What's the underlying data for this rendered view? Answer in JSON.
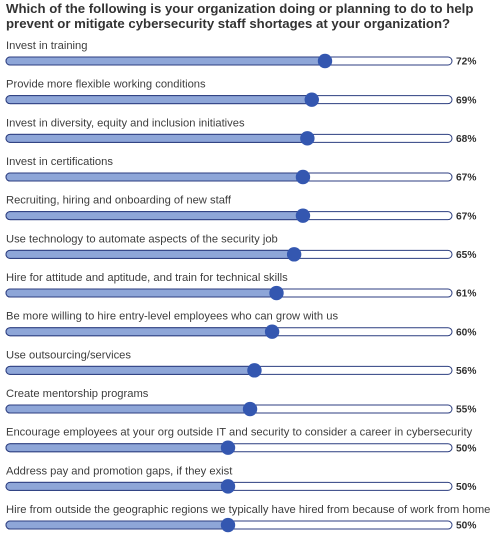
{
  "chart_data": {
    "type": "bar",
    "title": "Which of the following is your organization doing or planning to do to help prevent or mitigate cybersecurity staff shortages at your organization?",
    "categories": [
      "Invest in training",
      "Provide more flexible working conditions",
      "Invest in diversity, equity and inclusion initiatives",
      "Invest in certifications",
      "Recruiting, hiring and onboarding of new staff",
      "Use technology to automate aspects of the security job",
      "Hire for attitude and aptitude, and train for technical skills",
      "Be more willing to hire entry-level employees who can grow with us",
      "Use outsourcing/services",
      "Create mentorship programs",
      "Encourage employees at your org outside IT and security to consider a career in cybersecurity",
      "Address pay and promotion gaps, if they exist",
      "Hire from outside the geographic regions we typically have hired from because of work from home"
    ],
    "values": [
      72,
      69,
      68,
      67,
      67,
      65,
      61,
      60,
      56,
      55,
      50,
      50,
      50
    ],
    "value_labels": [
      "72%",
      "69%",
      "68%",
      "67%",
      "67%",
      "65%",
      "61%",
      "60%",
      "56%",
      "55%",
      "50%",
      "50%",
      "50%"
    ],
    "xlim": [
      0,
      100
    ],
    "colors": {
      "fill": "#8ea6d8",
      "knob": "#3457b0",
      "track_border": "#2c3e80"
    }
  }
}
